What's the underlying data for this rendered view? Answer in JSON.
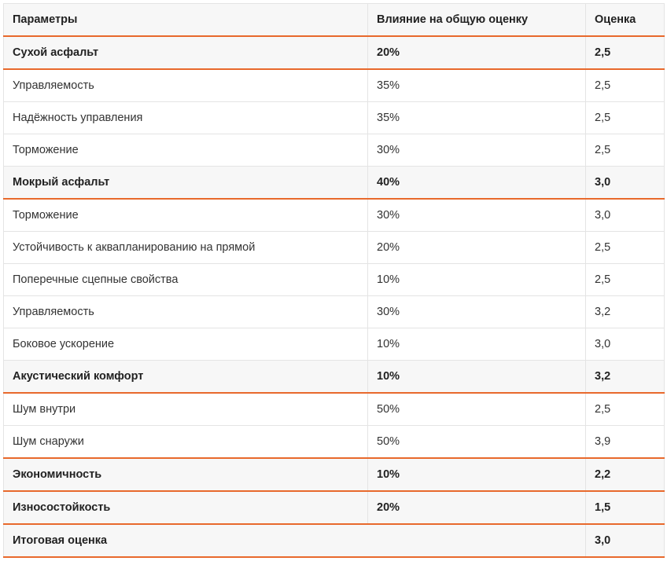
{
  "table": {
    "headers": [
      "Параметры",
      "Влияние на общую оценку",
      "Оценка"
    ],
    "rows": [
      {
        "type": "group",
        "param": "Сухой асфальт",
        "weight": "20%",
        "score": "2,5"
      },
      {
        "type": "sub",
        "param": "Управляемость",
        "weight": "35%",
        "score": "2,5"
      },
      {
        "type": "sub",
        "param": "Надёжность управления",
        "weight": "35%",
        "score": "2,5"
      },
      {
        "type": "sub",
        "param": "Торможение",
        "weight": "30%",
        "score": "2,5"
      },
      {
        "type": "group",
        "param": "Мокрый асфальт",
        "weight": "40%",
        "score": "3,0"
      },
      {
        "type": "sub",
        "param": "Торможение",
        "weight": "30%",
        "score": "3,0"
      },
      {
        "type": "sub",
        "param": "Устойчивость к аквапланированию на прямой",
        "weight": "20%",
        "score": "2,5"
      },
      {
        "type": "sub",
        "param": "Поперечные сцепные свойства",
        "weight": "10%",
        "score": "2,5"
      },
      {
        "type": "sub",
        "param": "Управляемость",
        "weight": "30%",
        "score": "3,2"
      },
      {
        "type": "sub",
        "param": "Боковое ускорение",
        "weight": "10%",
        "score": "3,0"
      },
      {
        "type": "group",
        "param": "Акустический комфорт",
        "weight": "10%",
        "score": "3,2"
      },
      {
        "type": "sub",
        "param": "Шум внутри",
        "weight": "50%",
        "score": "2,5"
      },
      {
        "type": "sub",
        "param": "Шум снаружи",
        "weight": "50%",
        "score": "3,9"
      },
      {
        "type": "group-top",
        "param": "Экономичность",
        "weight": "10%",
        "score": "2,2"
      },
      {
        "type": "group",
        "param": "Износостойкость",
        "weight": "20%",
        "score": "1,5"
      },
      {
        "type": "total",
        "param": "Итоговая оценка",
        "weight": "",
        "score": "3,0"
      }
    ]
  }
}
